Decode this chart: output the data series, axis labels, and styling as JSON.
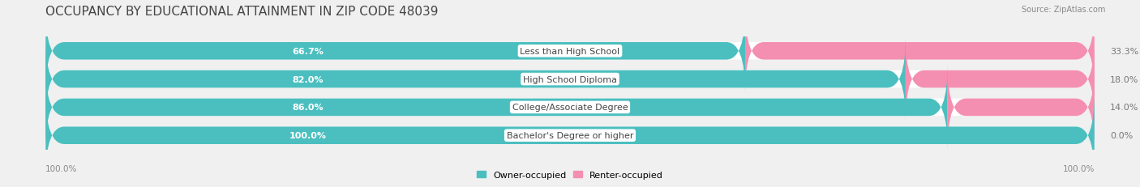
{
  "title": "OCCUPANCY BY EDUCATIONAL ATTAINMENT IN ZIP CODE 48039",
  "source": "Source: ZipAtlas.com",
  "categories": [
    "Less than High School",
    "High School Diploma",
    "College/Associate Degree",
    "Bachelor's Degree or higher"
  ],
  "owner_values": [
    66.7,
    82.0,
    86.0,
    100.0
  ],
  "renter_values": [
    33.3,
    18.0,
    14.0,
    0.0
  ],
  "owner_color": "#4BBFBF",
  "renter_color": "#F48FB1",
  "background_color": "#f0f0f0",
  "bar_background": "#e8e8e8",
  "title_fontsize": 11,
  "source_fontsize": 7,
  "value_fontsize": 8,
  "label_fontsize": 8,
  "bar_height": 0.62,
  "label_split": 50.0
}
